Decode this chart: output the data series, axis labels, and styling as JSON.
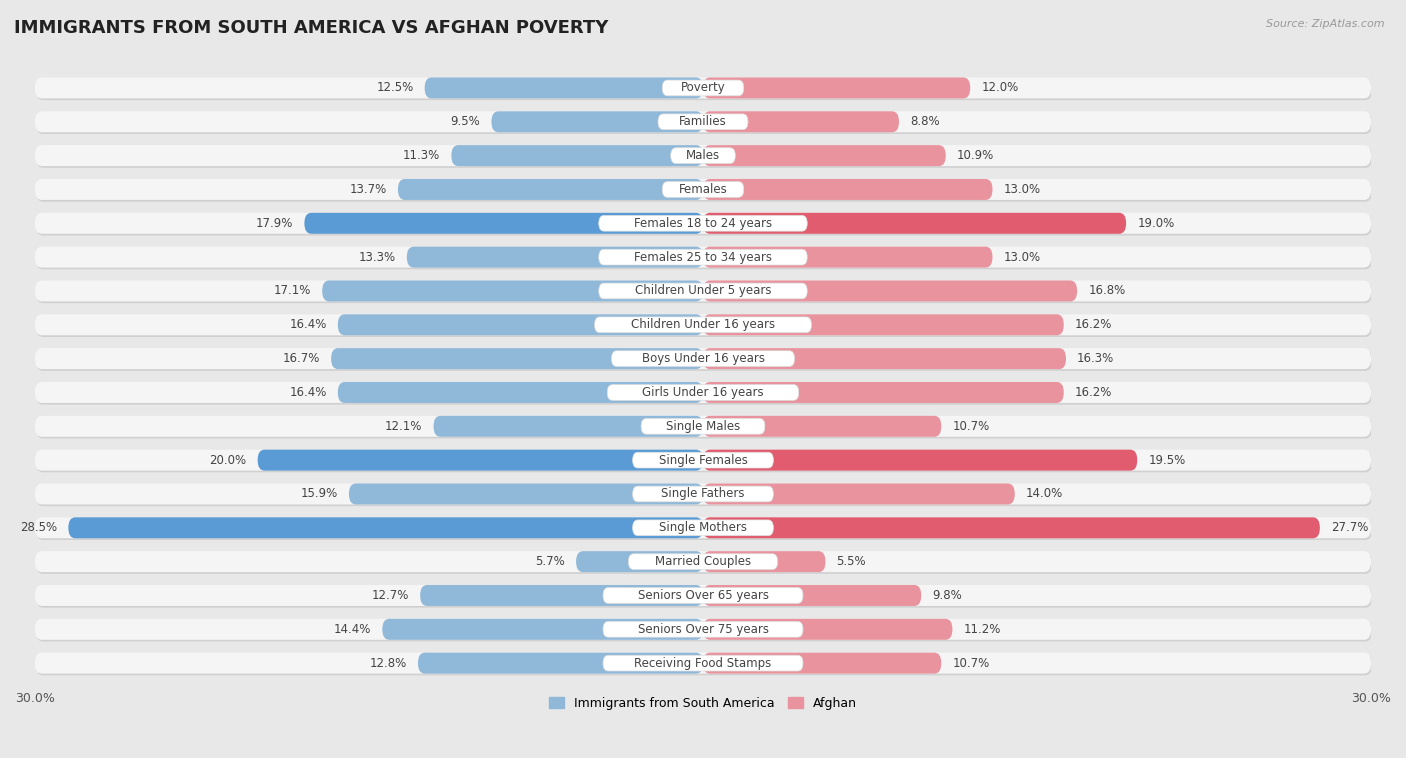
{
  "title": "IMMIGRANTS FROM SOUTH AMERICA VS AFGHAN POVERTY",
  "source": "Source: ZipAtlas.com",
  "categories": [
    "Poverty",
    "Families",
    "Males",
    "Females",
    "Females 18 to 24 years",
    "Females 25 to 34 years",
    "Children Under 5 years",
    "Children Under 16 years",
    "Boys Under 16 years",
    "Girls Under 16 years",
    "Single Males",
    "Single Females",
    "Single Fathers",
    "Single Mothers",
    "Married Couples",
    "Seniors Over 65 years",
    "Seniors Over 75 years",
    "Receiving Food Stamps"
  ],
  "south_america": [
    12.5,
    9.5,
    11.3,
    13.7,
    17.9,
    13.3,
    17.1,
    16.4,
    16.7,
    16.4,
    12.1,
    20.0,
    15.9,
    28.5,
    5.7,
    12.7,
    14.4,
    12.8
  ],
  "afghan": [
    12.0,
    8.8,
    10.9,
    13.0,
    19.0,
    13.0,
    16.8,
    16.2,
    16.3,
    16.2,
    10.7,
    19.5,
    14.0,
    27.7,
    5.5,
    9.8,
    11.2,
    10.7
  ],
  "sa_color": "#90b8d8",
  "afghan_color": "#e8939e",
  "sa_highlight_color": "#5b9bd5",
  "afghan_highlight_color": "#e05c6e",
  "highlight_rows": [
    4,
    11,
    13
  ],
  "xlim": 30.0,
  "bg_color": "#e8e8e8",
  "row_bg_color": "#f5f5f5",
  "row_shadow_color": "#d0d0d0",
  "label_bg_color": "#ffffff",
  "legend_sa_label": "Immigrants from South America",
  "legend_afghan_label": "Afghan",
  "title_fontsize": 13,
  "label_fontsize": 8.5,
  "value_fontsize": 8.5
}
